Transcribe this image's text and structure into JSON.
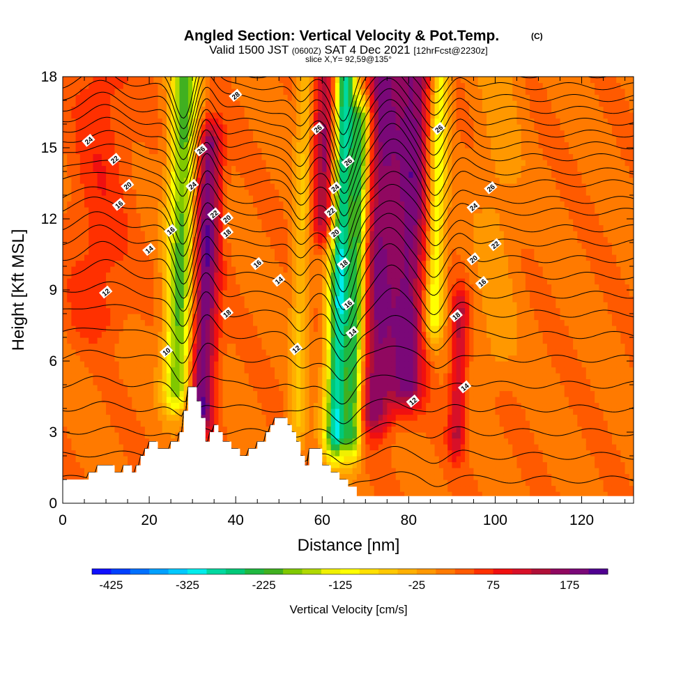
{
  "chart_data": {
    "type": "heatmap",
    "title_main": "Angled Section: Vertical Velocity & Pot.Temp.",
    "title_copyright": "(C)",
    "subtitle_parts": [
      "Valid 1500 JST ",
      "(0600Z)",
      " SAT 4 Dec 2021 ",
      "[12hrFcst@2230z]"
    ],
    "slice_label": "slice X,Y= 92,59@135°",
    "xlabel": "Distance [nm]",
    "ylabel": "Height [Kft MSL]",
    "xlim": [
      0,
      132
    ],
    "ylim": [
      0,
      18
    ],
    "x_ticks": [
      0,
      20,
      40,
      60,
      80,
      100,
      120
    ],
    "y_ticks": [
      0,
      3,
      6,
      9,
      12,
      15,
      18
    ],
    "colorbar": {
      "label": "Vertical Velocity [cm/s]",
      "min": -450,
      "max": 225,
      "tick_values": [
        -425,
        -325,
        -225,
        -125,
        -25,
        75,
        175
      ],
      "tick_labels": [
        "-425",
        "-325",
        "-225",
        "-125",
        "-25",
        "75",
        "175"
      ],
      "colors": [
        "#1010ff",
        "#0040ff",
        "#0070ff",
        "#00a0ff",
        "#00c8ff",
        "#00ecec",
        "#00d8a0",
        "#00c878",
        "#20b840",
        "#40b020",
        "#80c800",
        "#b0d800",
        "#f0f000",
        "#ffff00",
        "#ffe000",
        "#ffc800",
        "#ffb000",
        "#ff9800",
        "#ff7a00",
        "#ff5a00",
        "#ff3000",
        "#f01010",
        "#d81028",
        "#b01038",
        "#900860",
        "#7a0878",
        "#500090"
      ]
    },
    "vertical_velocity_features": [
      {
        "x_center": 8,
        "z_min": 8,
        "z_max": 18,
        "width_nm": 7,
        "peak": 45
      },
      {
        "x_center": 27,
        "z_min": 5,
        "z_max": 18,
        "width_nm": 3,
        "peak": -230
      },
      {
        "x_center": 33,
        "z_min": 4,
        "z_max": 15,
        "width_nm": 3,
        "peak": 175
      },
      {
        "x_center": 55,
        "z_min": 3,
        "z_max": 18,
        "width_nm": 2,
        "peak": -75
      },
      {
        "x_center": 60,
        "z_min": 12,
        "z_max": 18,
        "width_nm": 3,
        "peak": 140
      },
      {
        "x_center": 64,
        "z_min": 3,
        "z_max": 18,
        "width_nm": 2.5,
        "peak": -320
      },
      {
        "x_center": 68,
        "z_min": 3,
        "z_max": 16,
        "width_nm": 2,
        "peak": -250
      },
      {
        "x_center": 73,
        "z_min": 4,
        "z_max": 18,
        "width_nm": 4,
        "peak": 150
      },
      {
        "x_center": 80,
        "z_min": 5,
        "z_max": 18,
        "width_nm": 4,
        "peak": 160
      },
      {
        "x_center": 86,
        "z_min": 8,
        "z_max": 18,
        "width_nm": 2,
        "peak": -150
      },
      {
        "x_center": 92,
        "z_min": 3,
        "z_max": 8,
        "width_nm": 2,
        "peak": 110
      },
      {
        "x_center": 100,
        "z_min": 6,
        "z_max": 18,
        "width_nm": 5,
        "peak": -30
      }
    ],
    "terrain": [
      [
        0,
        1.0
      ],
      [
        6,
        1.0
      ],
      [
        6,
        1.3
      ],
      [
        8,
        1.3
      ],
      [
        8,
        1.6
      ],
      [
        12,
        1.6
      ],
      [
        12,
        1.3
      ],
      [
        14,
        1.3
      ],
      [
        14,
        1.6
      ],
      [
        16,
        1.6
      ],
      [
        16,
        1.3
      ],
      [
        17,
        1.3
      ],
      [
        17,
        1.6
      ],
      [
        18,
        1.6
      ],
      [
        18,
        2.0
      ],
      [
        19,
        2.0
      ],
      [
        19,
        2.3
      ],
      [
        20,
        2.3
      ],
      [
        20,
        2.6
      ],
      [
        22,
        2.6
      ],
      [
        22,
        2.3
      ],
      [
        25,
        2.3
      ],
      [
        25,
        2.6
      ],
      [
        27,
        2.6
      ],
      [
        27,
        3.0
      ],
      [
        28,
        3.0
      ],
      [
        28,
        3.9
      ],
      [
        29,
        3.9
      ],
      [
        29,
        4.9
      ],
      [
        31,
        4.9
      ],
      [
        31,
        4.3
      ],
      [
        32,
        4.3
      ],
      [
        32,
        3.6
      ],
      [
        33,
        3.6
      ],
      [
        33,
        2.6
      ],
      [
        34,
        2.6
      ],
      [
        34,
        3.0
      ],
      [
        35,
        3.0
      ],
      [
        35,
        3.3
      ],
      [
        36,
        3.3
      ],
      [
        36,
        3.0
      ],
      [
        37,
        3.0
      ],
      [
        37,
        2.6
      ],
      [
        39,
        2.6
      ],
      [
        39,
        2.3
      ],
      [
        41,
        2.3
      ],
      [
        41,
        2.0
      ],
      [
        43,
        2.0
      ],
      [
        43,
        2.3
      ],
      [
        45,
        2.3
      ],
      [
        45,
        2.6
      ],
      [
        47,
        2.6
      ],
      [
        47,
        3.0
      ],
      [
        48,
        3.0
      ],
      [
        48,
        3.3
      ],
      [
        49,
        3.3
      ],
      [
        49,
        3.6
      ],
      [
        52,
        3.6
      ],
      [
        52,
        3.3
      ],
      [
        53,
        3.3
      ],
      [
        53,
        3.0
      ],
      [
        54,
        3.0
      ],
      [
        54,
        2.6
      ],
      [
        55,
        2.6
      ],
      [
        55,
        2.0
      ],
      [
        56,
        2.0
      ],
      [
        56,
        1.6
      ],
      [
        57,
        1.6
      ],
      [
        57,
        2.3
      ],
      [
        60,
        2.3
      ],
      [
        60,
        1.6
      ],
      [
        62,
        1.6
      ],
      [
        62,
        1.3
      ],
      [
        64,
        1.3
      ],
      [
        64,
        1.0
      ],
      [
        66,
        1.0
      ],
      [
        66,
        0.7
      ],
      [
        68,
        0.7
      ],
      [
        68,
        0.3
      ],
      [
        132,
        0.3
      ]
    ],
    "theta_levels": [
      {
        "base": 1.0,
        "label": null
      },
      {
        "base": 2.0,
        "label": null
      },
      {
        "base": 3.0,
        "label": null
      },
      {
        "base": 4.0,
        "label": null
      },
      {
        "base": 5.0,
        "label": null
      },
      {
        "base": 6.1,
        "label": "10"
      },
      {
        "base": 7.1,
        "label": null
      },
      {
        "base": 8.0,
        "label": "12"
      },
      {
        "base": 8.8,
        "label": null
      },
      {
        "base": 9.6,
        "label": "14"
      },
      {
        "base": 10.3,
        "label": null
      },
      {
        "base": 11.0,
        "label": "16"
      },
      {
        "base": 11.6,
        "label": null
      },
      {
        "base": 12.3,
        "label": "18"
      },
      {
        "base": 12.8,
        "label": null
      },
      {
        "base": 13.5,
        "label": "20"
      },
      {
        "base": 14.0,
        "label": null
      },
      {
        "base": 14.6,
        "label": "22"
      },
      {
        "base": 15.1,
        "label": null
      },
      {
        "base": 15.6,
        "label": "24"
      },
      {
        "base": 16.1,
        "label": null
      },
      {
        "base": 16.6,
        "label": "26"
      },
      {
        "base": 17.1,
        "label": null
      },
      {
        "base": 17.6,
        "label": "28"
      },
      {
        "base": 18.1,
        "label": null
      }
    ],
    "theta_perturbations": [
      {
        "x": 9,
        "amp": 0.6,
        "width": 6
      },
      {
        "x": 28,
        "amp": -1.8,
        "width": 3
      },
      {
        "x": 33,
        "amp": 1.2,
        "width": 3
      },
      {
        "x": 55,
        "amp": -0.8,
        "width": 2.5
      },
      {
        "x": 65,
        "amp": -2.0,
        "width": 3
      },
      {
        "x": 76,
        "amp": 1.3,
        "width": 5
      },
      {
        "x": 86,
        "amp": -0.9,
        "width": 3
      },
      {
        "x": 92,
        "amp": 0.5,
        "width": 3
      }
    ],
    "contour_label_positions": [
      {
        "text": "24",
        "x": 6,
        "z": 15.3
      },
      {
        "text": "22",
        "x": 12,
        "z": 14.5
      },
      {
        "text": "20",
        "x": 15,
        "z": 13.4
      },
      {
        "text": "16",
        "x": 13,
        "z": 12.6
      },
      {
        "text": "14",
        "x": 20,
        "z": 10.7
      },
      {
        "text": "12",
        "x": 10,
        "z": 8.9
      },
      {
        "text": "16",
        "x": 25,
        "z": 11.5
      },
      {
        "text": "24",
        "x": 30,
        "z": 13.4
      },
      {
        "text": "26",
        "x": 32,
        "z": 14.9
      },
      {
        "text": "22",
        "x": 35,
        "z": 12.2
      },
      {
        "text": "20",
        "x": 38,
        "z": 12.0
      },
      {
        "text": "18",
        "x": 38,
        "z": 11.4
      },
      {
        "text": "18",
        "x": 38,
        "z": 8.0
      },
      {
        "text": "10",
        "x": 24,
        "z": 6.4
      },
      {
        "text": "28",
        "x": 40,
        "z": 17.2
      },
      {
        "text": "16",
        "x": 45,
        "z": 10.1
      },
      {
        "text": "14",
        "x": 50,
        "z": 9.4
      },
      {
        "text": "12",
        "x": 54,
        "z": 6.5
      },
      {
        "text": "26",
        "x": 59,
        "z": 15.8
      },
      {
        "text": "26",
        "x": 66,
        "z": 14.4
      },
      {
        "text": "24",
        "x": 63,
        "z": 13.3
      },
      {
        "text": "22",
        "x": 62,
        "z": 12.3
      },
      {
        "text": "20",
        "x": 63,
        "z": 11.4
      },
      {
        "text": "18",
        "x": 65,
        "z": 10.1
      },
      {
        "text": "16",
        "x": 66,
        "z": 8.4
      },
      {
        "text": "14",
        "x": 67,
        "z": 7.2
      },
      {
        "text": "12",
        "x": 81,
        "z": 4.3
      },
      {
        "text": "14",
        "x": 93,
        "z": 4.9
      },
      {
        "text": "18",
        "x": 91,
        "z": 7.9
      },
      {
        "text": "16",
        "x": 97,
        "z": 9.3
      },
      {
        "text": "20",
        "x": 95,
        "z": 10.3
      },
      {
        "text": "22",
        "x": 100,
        "z": 10.9
      },
      {
        "text": "24",
        "x": 95,
        "z": 12.5
      },
      {
        "text": "26",
        "x": 99,
        "z": 13.3
      },
      {
        "text": "26",
        "x": 87,
        "z": 15.8
      }
    ]
  }
}
